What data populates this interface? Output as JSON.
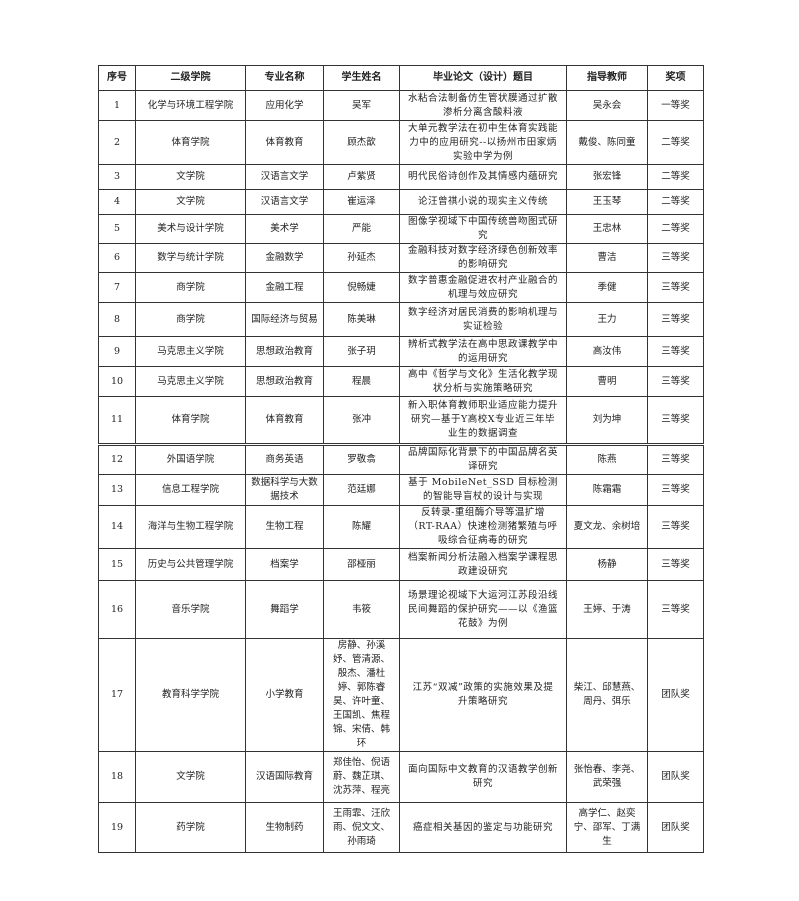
{
  "table": {
    "headers": [
      "序号",
      "二级学院",
      "专业名称",
      "学生姓名",
      "毕业论文（设计）题目",
      "指导教师",
      "奖项"
    ],
    "rows": [
      {
        "no": "1",
        "college": "化学与环境工程学院",
        "major": "应用化学",
        "students": "吴军",
        "title": "水粘合法制备仿生管状膜通过扩散渗析分离含酸料液",
        "advisor": "吴永会",
        "award": "一等奖"
      },
      {
        "no": "2",
        "college": "体育学院",
        "major": "体育教育",
        "students": "顾杰歆",
        "title": "大单元教学法在初中生体育实践能力中的应用研究--以扬州市田家炳实验中学为例",
        "advisor": "戴俊、陈同童",
        "award": "二等奖"
      },
      {
        "no": "3",
        "college": "文学院",
        "major": "汉语言文学",
        "students": "卢紫贤",
        "title": "明代民俗诗创作及其情感内蕴研究",
        "advisor": "张宏锋",
        "award": "二等奖"
      },
      {
        "no": "4",
        "college": "文学院",
        "major": "汉语言文学",
        "students": "崔运泽",
        "title": "论汪曾祺小说的现实主义传统",
        "advisor": "王玉琴",
        "award": "二等奖"
      },
      {
        "no": "5",
        "college": "美术与设计学院",
        "major": "美术学",
        "students": "严能",
        "title": "图像学视域下中国传统兽吻图式研究",
        "advisor": "王忠林",
        "award": "二等奖"
      },
      {
        "no": "6",
        "college": "数学与统计学院",
        "major": "金融数学",
        "students": "孙延杰",
        "title": "金融科技对数字经济绿色创新效率的影响研究",
        "advisor": "曹洁",
        "award": "三等奖"
      },
      {
        "no": "7",
        "college": "商学院",
        "major": "金融工程",
        "students": "倪畅婕",
        "title": "数字普惠金融促进农村产业融合的机理与效应研究",
        "advisor": "季健",
        "award": "三等奖"
      },
      {
        "no": "8",
        "college": "商学院",
        "major": "国际经济与贸易",
        "students": "陈美琳",
        "title": "数字经济对居民消费的影响机理与实证检验",
        "advisor": "王力",
        "award": "三等奖"
      },
      {
        "no": "9",
        "college": "马克思主义学院",
        "major": "思想政治教育",
        "students": "张子玥",
        "title": "辨析式教学法在高中思政课教学中的运用研究",
        "advisor": "高汝伟",
        "award": "三等奖"
      },
      {
        "no": "10",
        "college": "马克思主义学院",
        "major": "思想政治教育",
        "students": "程晨",
        "title": "高中《哲学与文化》生活化教学现状分析与实施策略研究",
        "advisor": "曹明",
        "award": "三等奖"
      },
      {
        "no": "11",
        "college": "体育学院",
        "major": "体育教育",
        "students": "张冲",
        "title": "新入职体育教师职业适应能力提升研究—基于Y高校X专业近三年毕业生的数据调查",
        "advisor": "刘为坤",
        "award": "三等奖"
      },
      {
        "no": "12",
        "college": "外国语学院",
        "major": "商务英语",
        "students": "罗敬翕",
        "title": "品牌国际化背景下的中国品牌名英译研究",
        "advisor": "陈燕",
        "award": "三等奖"
      },
      {
        "no": "13",
        "college": "信息工程学院",
        "major": "数据科学与大数据技术",
        "students": "范廷娜",
        "title": "基于 MobileNet_SSD 目标检测的智能导盲杖的设计与实现",
        "advisor": "陈霜霜",
        "award": "三等奖"
      },
      {
        "no": "14",
        "college": "海洋与生物工程学院",
        "major": "生物工程",
        "students": "陈耀",
        "title": "反转录-重组酶介导等温扩增（RT-RAA）快速检测猪繁殖与呼吸综合征病毒的研究",
        "advisor": "夏文龙、余树培",
        "award": "三等奖"
      },
      {
        "no": "15",
        "college": "历史与公共管理学院",
        "major": "档案学",
        "students": "邵桠丽",
        "title": "档案新闻分析法融入档案学课程思政建设研究",
        "advisor": "杨静",
        "award": "三等奖"
      },
      {
        "no": "16",
        "college": "音乐学院",
        "major": "舞蹈学",
        "students": "韦筱",
        "title": "场景理论视域下大运河江苏段沿线民间舞蹈的保护研究——以《渔篮花鼓》为例",
        "advisor": "王婷、于涛",
        "award": "三等奖"
      },
      {
        "no": "17",
        "college": "教育科学学院",
        "major": "小学教育",
        "students": "房静、孙溪妤、管清源、殷杰、潘杜婷、郭陈睿昊、许叶童、王国凯、焦程锦、宋倩、韩环",
        "title": "江苏“双减”政策的实施效果及提升策略研究",
        "advisor": "柴江、邱慧燕、周丹、弭乐",
        "award": "团队奖"
      },
      {
        "no": "18",
        "college": "文学院",
        "major": "汉语国际教育",
        "students": "郑佳怡、倪语蔚、魏芷琪、沈苏萍、程亮",
        "title": "面向国际中文教育的汉语教学创新研究",
        "advisor": "张怡春、李尧、武荣强",
        "award": "团队奖"
      },
      {
        "no": "19",
        "college": "药学院",
        "major": "生物制药",
        "students": "王雨霏、汪欣雨、倪文文、孙雨琦",
        "title": "癌症相关基因的鉴定与功能研究",
        "advisor": "高学仁、赵奕宁、邵军、丁满生",
        "award": "团队奖"
      }
    ]
  }
}
